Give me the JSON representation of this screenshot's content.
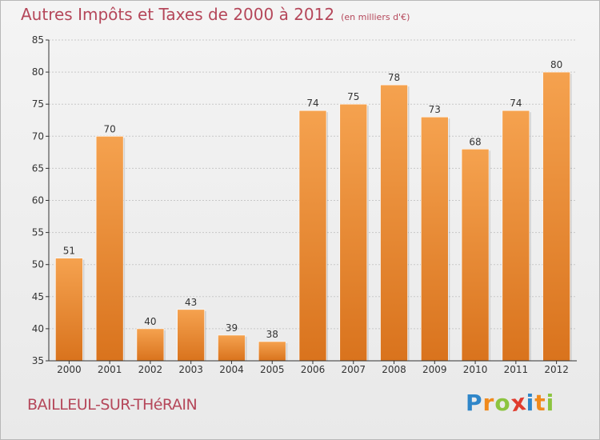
{
  "chart_data": {
    "type": "bar",
    "title": "Autres Impôts et Taxes de 2000 à 2012",
    "subtitle": "(en milliers d'€)",
    "categories": [
      "2000",
      "2001",
      "2002",
      "2003",
      "2004",
      "2005",
      "2006",
      "2007",
      "2008",
      "2009",
      "2010",
      "2011",
      "2012"
    ],
    "values": [
      51,
      70,
      40,
      43,
      39,
      38,
      74,
      75,
      78,
      73,
      68,
      74,
      80
    ],
    "ylim": [
      35,
      85
    ],
    "yticks": [
      35,
      40,
      45,
      50,
      55,
      60,
      65,
      70,
      75,
      80,
      85
    ],
    "xlabel": "",
    "ylabel": "",
    "grid": true,
    "bar_color_top": "#f5a24f",
    "bar_color_bottom": "#d9731d"
  },
  "footer": {
    "commune": "BAILLEUL-SUR-THéRAIN",
    "logo_letters": [
      {
        "ch": "P",
        "color": "#2f86c9"
      },
      {
        "ch": "r",
        "color": "#f08a1c"
      },
      {
        "ch": "o",
        "color": "#8cc43f"
      },
      {
        "ch": "x",
        "color": "#e03b2e"
      },
      {
        "ch": "i",
        "color": "#2f86c9"
      },
      {
        "ch": "t",
        "color": "#f08a1c"
      },
      {
        "ch": "i",
        "color": "#8cc43f"
      }
    ]
  },
  "colors": {
    "title": "#b5475a",
    "axis": "#333333",
    "grid": "#c8c8c8"
  }
}
